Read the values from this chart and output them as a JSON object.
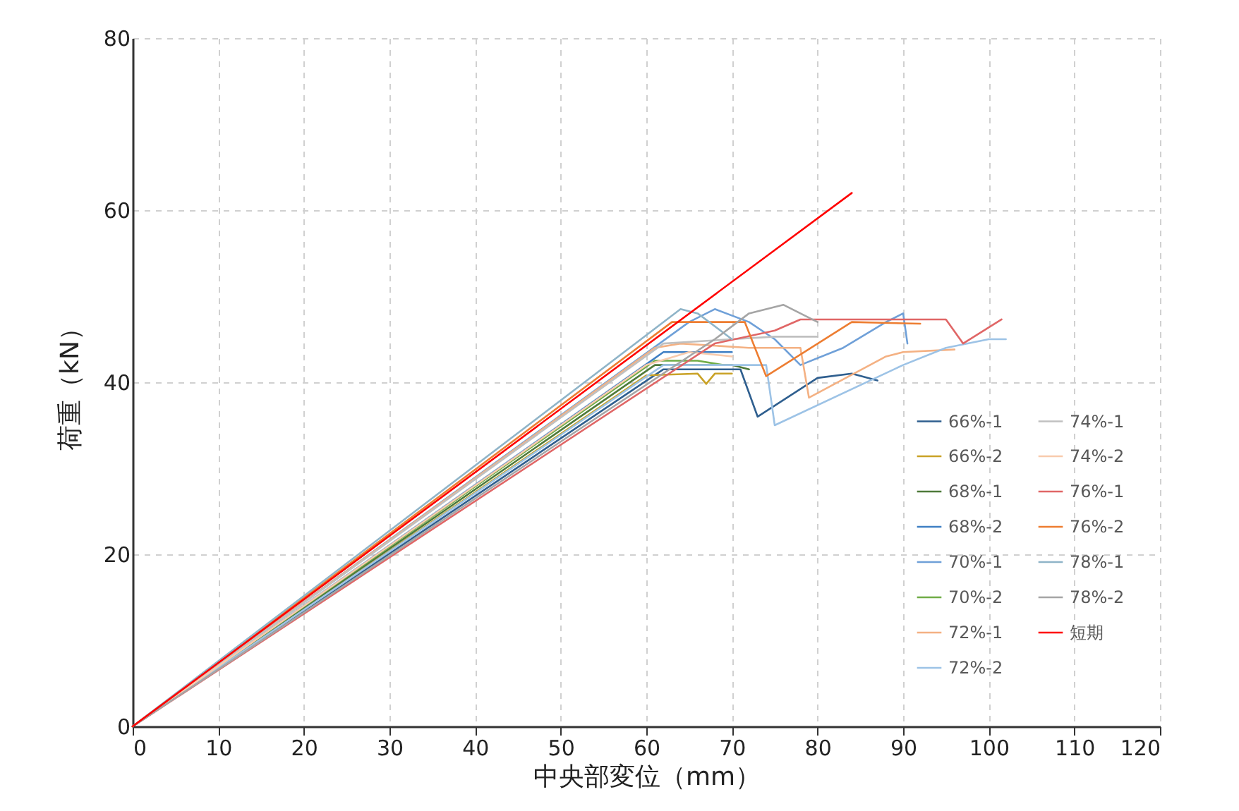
{
  "chart_data": {
    "type": "line",
    "xlabel": "中央部変位（mm）",
    "ylabel": "荷重（kN）",
    "xlim": [
      0,
      120
    ],
    "ylim": [
      0,
      80
    ],
    "xticks": [
      0,
      10,
      20,
      30,
      40,
      50,
      60,
      70,
      80,
      90,
      100,
      110,
      120
    ],
    "yticks": [
      0,
      20,
      40,
      60,
      80
    ],
    "grid": true,
    "legend": "right",
    "line_style": "solid",
    "marker": "none",
    "series": [
      {
        "name": "66%-1",
        "color": "#2f5f8f",
        "x": [
          0,
          62,
          71,
          73,
          80,
          84,
          87
        ],
        "values": [
          0,
          41.5,
          41.5,
          36,
          40.5,
          41,
          40.2
        ]
      },
      {
        "name": "66%-2",
        "color": "#c9a227",
        "x": [
          0,
          60,
          66,
          67,
          68,
          70
        ],
        "values": [
          0,
          40.8,
          41,
          39.8,
          41,
          41
        ]
      },
      {
        "name": "68%-1",
        "color": "#4e7a3a",
        "x": [
          0,
          61,
          70,
          72
        ],
        "values": [
          0,
          42,
          42,
          41.5
        ]
      },
      {
        "name": "68%-2",
        "color": "#3f7fc4",
        "x": [
          0,
          62,
          70
        ],
        "values": [
          0,
          43.5,
          43.5
        ]
      },
      {
        "name": "70%-1",
        "color": "#6fa0d8",
        "x": [
          0,
          65,
          68,
          72,
          75,
          78,
          83,
          88,
          90,
          90.5
        ],
        "values": [
          0,
          47,
          48.5,
          47,
          45,
          42,
          44,
          47,
          48,
          44.5
        ]
      },
      {
        "name": "70%-2",
        "color": "#70ad47",
        "x": [
          0,
          61,
          66,
          69
        ],
        "values": [
          0,
          42.5,
          42.5,
          42
        ]
      },
      {
        "name": "72%-1",
        "color": "#f4b183",
        "x": [
          0,
          61,
          64,
          72,
          78,
          79,
          88,
          90,
          96
        ],
        "values": [
          0,
          44,
          44.5,
          44,
          44,
          38.2,
          43,
          43.5,
          43.8
        ]
      },
      {
        "name": "72%-2",
        "color": "#9dc3e6",
        "x": [
          0,
          62,
          74,
          75,
          90,
          95,
          100,
          102
        ],
        "values": [
          0,
          42,
          42,
          35,
          42,
          44,
          45,
          45
        ]
      },
      {
        "name": "74%-1",
        "color": "#c0c0c0",
        "x": [
          0,
          62,
          70,
          75,
          80
        ],
        "values": [
          0,
          44.5,
          45,
          45.3,
          45.3
        ]
      },
      {
        "name": "74%-2",
        "color": "#f8cbad",
        "x": [
          0,
          60,
          65,
          70
        ],
        "values": [
          0,
          42,
          43.5,
          43
        ]
      },
      {
        "name": "76%-1",
        "color": "#e06666",
        "x": [
          0,
          68,
          75,
          78,
          95,
          97,
          101.5
        ],
        "values": [
          0,
          44.5,
          46,
          47.3,
          47.3,
          44.5,
          47.3
        ]
      },
      {
        "name": "76%-2",
        "color": "#ed7d31",
        "x": [
          0,
          63,
          71.5,
          74,
          84,
          92
        ],
        "values": [
          0,
          47,
          47,
          40.7,
          47,
          46.8
        ]
      },
      {
        "name": "78%-1",
        "color": "#8fb4c8",
        "x": [
          0,
          64,
          66,
          70
        ],
        "values": [
          0,
          48.5,
          48,
          45
        ]
      },
      {
        "name": "78%-2",
        "color": "#a5a5a5",
        "x": [
          0,
          68,
          72,
          76,
          78,
          80
        ],
        "values": [
          0,
          45,
          48,
          49,
          48,
          47
        ]
      },
      {
        "name": "短期",
        "color": "#ff0000",
        "x": [
          0,
          84
        ],
        "values": [
          0,
          62
        ]
      }
    ]
  }
}
